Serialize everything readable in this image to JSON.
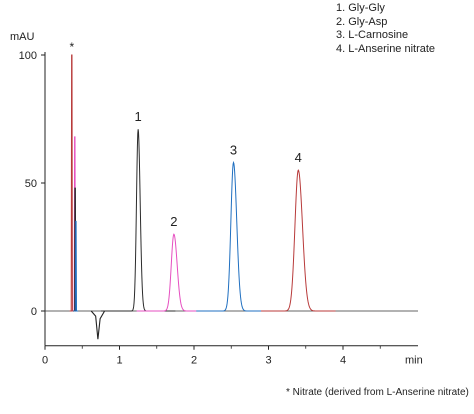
{
  "legend": {
    "items": [
      "1. Gly-Gly",
      "2. Gly-Asp",
      "3. L-Carnosine",
      "4. L-Anserine nitrate"
    ]
  },
  "footnote": "* Nitrate (derived from L-Anserine nitrate)",
  "chart_data": {
    "type": "line",
    "ylabel": "mAU",
    "xlabel": "min",
    "xlim": [
      0,
      5
    ],
    "ylim": [
      -12,
      100
    ],
    "xticks": [
      "0",
      "1",
      "2",
      "3",
      "4"
    ],
    "yticks": [
      "0",
      "50",
      "100"
    ],
    "grid": false,
    "legend_position": "top-right",
    "series": [
      {
        "color": "#2b2b2b",
        "peak_x": 1.25,
        "peak_y": 71,
        "width": 0.022
      },
      {
        "color": "#e64fc0",
        "peak_x": 1.73,
        "peak_y": 30,
        "width": 0.035
      },
      {
        "color": "#1f6fc0",
        "peak_x": 2.53,
        "peak_y": 58,
        "width": 0.035
      },
      {
        "color": "#b83a3a",
        "peak_x": 3.4,
        "peak_y": 55,
        "width": 0.045
      }
    ],
    "solvent_front": {
      "x": 0.36,
      "y": 100
    },
    "annotations": [
      {
        "text": "*",
        "x": 0.36,
        "y": 100
      },
      {
        "text": "1",
        "x": 1.25,
        "y": 71
      },
      {
        "text": "2",
        "x": 1.73,
        "y": 30
      },
      {
        "text": "3",
        "x": 2.53,
        "y": 58
      },
      {
        "text": "4",
        "x": 3.4,
        "y": 55
      }
    ]
  }
}
